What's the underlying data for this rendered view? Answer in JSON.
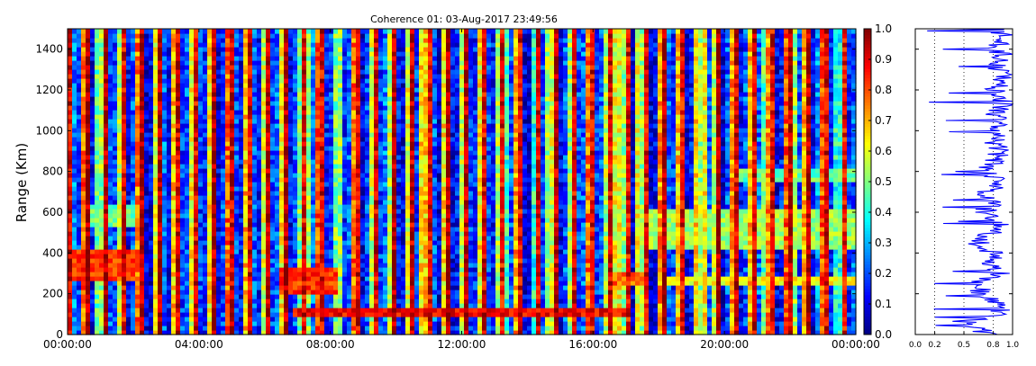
{
  "chart_data": [
    {
      "type": "heatmap",
      "title": "Coherence 01: 03-Aug-2017 23:49:56",
      "xlabel": "",
      "ylabel": "Range (Km)",
      "x_ticks": [
        "00:00:00",
        "04:00:00",
        "08:00:00",
        "12:00:00",
        "16:00:00",
        "20:00:00",
        "00:00:00"
      ],
      "x_range_hours": [
        0,
        24
      ],
      "y_ticks": [
        0,
        200,
        400,
        600,
        800,
        1000,
        1200,
        1400
      ],
      "ylim": [
        0,
        1500
      ],
      "colormap": "jet",
      "colorbar": {
        "range": [
          0.0,
          1.0
        ],
        "ticks": [
          "0.0",
          "0.1",
          "0.2",
          "0.3",
          "0.4",
          "0.5",
          "0.6",
          "0.7",
          "0.8",
          "0.9",
          "1.0"
        ]
      },
      "features": [
        {
          "start_hour": 0.2,
          "end_hour": 2.0,
          "range_start_km": 260,
          "range_end_km": 420,
          "value": 0.9
        },
        {
          "start_hour": 0.6,
          "end_hour": 2.0,
          "range_start_km": 540,
          "range_end_km": 640,
          "value": 0.55
        },
        {
          "start_hour": 6.5,
          "end_hour": 8.2,
          "range_start_km": 200,
          "range_end_km": 320,
          "value": 0.9
        },
        {
          "start_hour": 6.8,
          "end_hour": 17.2,
          "range_start_km": 95,
          "range_end_km": 135,
          "value": 0.95
        },
        {
          "start_hour": 16.5,
          "end_hour": 17.6,
          "range_start_km": 240,
          "range_end_km": 300,
          "value": 0.85
        },
        {
          "start_hour": 17.4,
          "end_hour": 24.0,
          "range_start_km": 420,
          "range_end_km": 620,
          "value": 0.6
        },
        {
          "start_hour": 18.0,
          "end_hour": 24.0,
          "range_start_km": 240,
          "range_end_km": 290,
          "value": 0.7
        },
        {
          "start_hour": 20.5,
          "end_hour": 24.0,
          "range_start_km": 760,
          "range_end_km": 820,
          "value": 0.55
        }
      ],
      "grid": false
    },
    {
      "type": "line",
      "title": "",
      "xlabel": "",
      "ylabel": "",
      "x_ticks": [
        "0.0",
        "0.2",
        "0.5",
        "0.8",
        "1.0"
      ],
      "xlim": [
        0.0,
        1.0
      ],
      "ylim": [
        0,
        1500
      ],
      "gridlines_x": [
        0.2,
        0.5,
        0.8
      ],
      "line_color": "#0000ff",
      "series": [
        {
          "profile_range_km": [
            0,
            50,
            100,
            150,
            200,
            250,
            300,
            350,
            400,
            450,
            500,
            550,
            600,
            650,
            700,
            750,
            800,
            850,
            900,
            950,
            1000,
            1050,
            1100,
            1150,
            1200,
            1250,
            1300,
            1350,
            1400,
            1450,
            1500
          ],
          "values": [
            0.75,
            0.55,
            0.82,
            0.9,
            0.7,
            0.6,
            0.85,
            0.75,
            0.8,
            0.65,
            0.78,
            0.85,
            0.7,
            0.8,
            0.75,
            0.85,
            0.7,
            0.8,
            0.85,
            0.8,
            0.85,
            0.8,
            0.85,
            0.9,
            0.8,
            0.9,
            0.85,
            0.9,
            0.85,
            0.9,
            0.85
          ]
        }
      ]
    }
  ]
}
